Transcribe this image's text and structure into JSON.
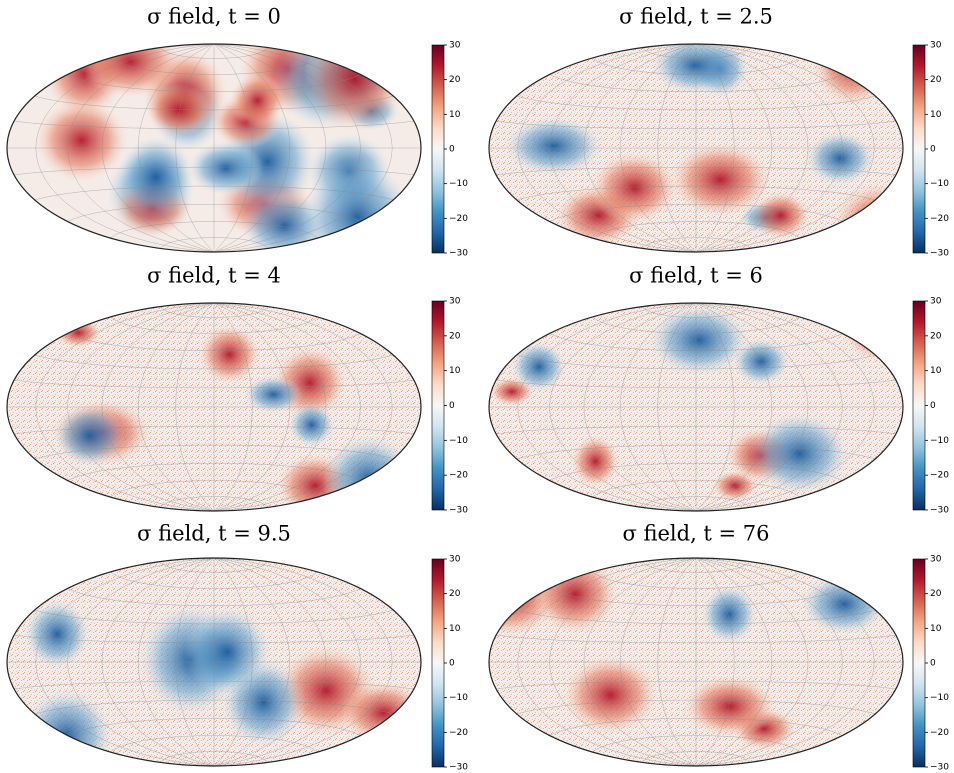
{
  "chart_data": [
    {
      "type": "map",
      "title": "σ field, t = 0",
      "clim": [
        -30,
        30
      ],
      "cticks": [
        30,
        20,
        10,
        0,
        {
          "value": -10,
          "label": "−10"
        },
        {
          "value": -20,
          "label": "−20"
        },
        {
          "value": -30,
          "label": "−30"
        }
      ]
    },
    {
      "type": "map",
      "title": "σ field, t = 2.5",
      "clim": [
        -30,
        30
      ],
      "cticks": [
        30,
        20,
        10,
        0,
        {
          "value": -10,
          "label": "−10"
        },
        {
          "value": -20,
          "label": "−20"
        },
        {
          "value": -30,
          "label": "−30"
        }
      ]
    },
    {
      "type": "map",
      "title": "σ field, t = 4",
      "clim": [
        -30,
        30
      ],
      "cticks": [
        30,
        20,
        10,
        0,
        {
          "value": -10,
          "label": "−10"
        },
        {
          "value": -20,
          "label": "−20"
        },
        {
          "value": -30,
          "label": "−30"
        }
      ]
    },
    {
      "type": "map",
      "title": "σ field, t = 6",
      "clim": [
        -30,
        30
      ],
      "cticks": [
        30,
        20,
        10,
        0,
        {
          "value": -10,
          "label": "−10"
        },
        {
          "value": -20,
          "label": "−20"
        },
        {
          "value": -30,
          "label": "−30"
        }
      ]
    },
    {
      "type": "map",
      "title": "σ field, t = 9.5",
      "clim": [
        -30,
        30
      ],
      "cticks": [
        30,
        20,
        10,
        0,
        {
          "value": -10,
          "label": "−10"
        },
        {
          "value": -20,
          "label": "−20"
        },
        {
          "value": -30,
          "label": "−30"
        }
      ]
    },
    {
      "type": "map",
      "title": "σ field, t = 76",
      "clim": [
        -30,
        30
      ],
      "cticks": [
        30,
        20,
        10,
        0,
        {
          "value": -10,
          "label": "−10"
        },
        {
          "value": -20,
          "label": "−20"
        },
        {
          "value": -30,
          "label": "−30"
        }
      ]
    }
  ]
}
